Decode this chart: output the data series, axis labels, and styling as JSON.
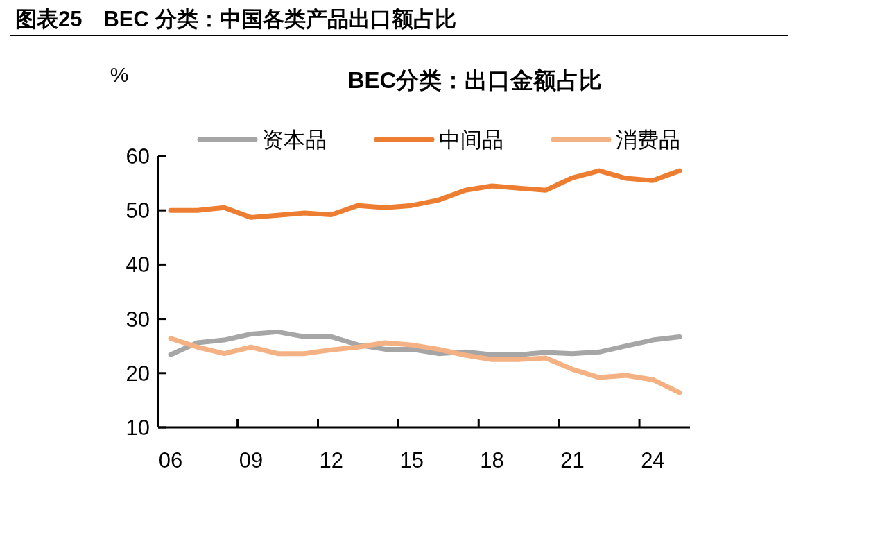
{
  "chart_data": {
    "type": "line",
    "title": "图表25　BEC 分类：中国各类产品出口额占比",
    "subtitle": "BEC分类：出口金额占比",
    "ylabel": "%",
    "categories": [
      "06",
      null,
      null,
      "09",
      null,
      null,
      "12",
      null,
      null,
      "15",
      null,
      null,
      "18",
      null,
      null,
      "21",
      null,
      null,
      "24",
      null
    ],
    "series": [
      {
        "name": "资本品",
        "color": "#a6a6a6",
        "values": [
          23.4,
          25.6,
          26.1,
          27.2,
          27.6,
          26.7,
          26.7,
          25.2,
          24.4,
          24.4,
          23.6,
          23.9,
          23.4,
          23.4,
          23.8,
          23.6,
          23.9,
          25.0,
          26.1,
          26.7
        ]
      },
      {
        "name": "中间品",
        "color": "#ed7d31",
        "values": [
          50.0,
          50.0,
          50.5,
          48.7,
          49.1,
          49.5,
          49.2,
          50.9,
          50.5,
          50.9,
          51.9,
          53.7,
          54.5,
          54.1,
          53.7,
          56.0,
          57.3,
          55.9,
          55.5,
          57.3
        ]
      },
      {
        "name": "消费品",
        "color": "#f4b183",
        "values": [
          26.4,
          24.8,
          23.6,
          24.8,
          23.6,
          23.6,
          24.3,
          24.8,
          25.6,
          25.2,
          24.4,
          23.3,
          22.5,
          22.5,
          22.8,
          20.7,
          19.2,
          19.6,
          18.8,
          16.4
        ]
      }
    ],
    "ylim": [
      10,
      60
    ],
    "yticks": [
      10,
      20,
      30,
      40,
      50,
      60
    ],
    "grid": false,
    "legend": "top",
    "marker": "none",
    "line_style": "solid"
  }
}
